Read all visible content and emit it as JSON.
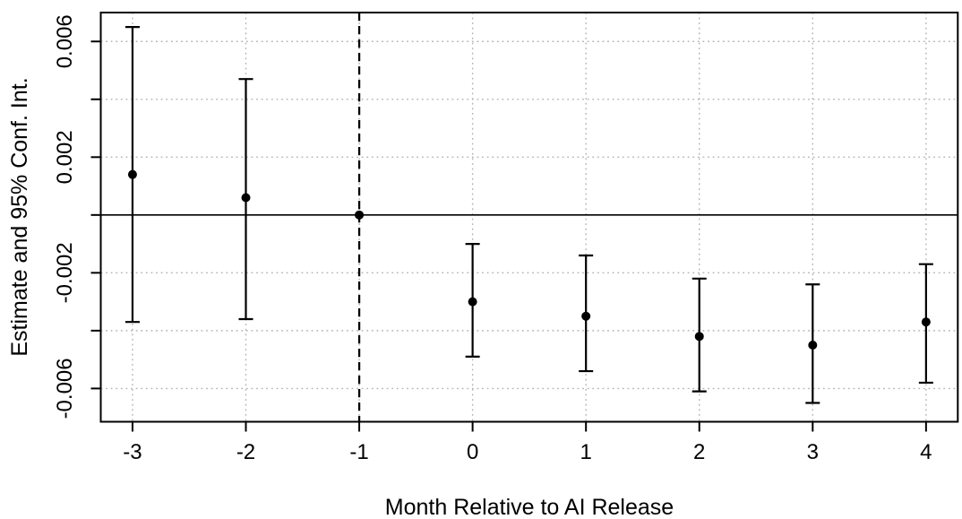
{
  "figure": {
    "kind": "statistical-plot",
    "background": "#ffffff"
  },
  "chart_data": {
    "type": "scatter",
    "subtype": "event-study-point-estimates-with-error-bars",
    "title": "",
    "xlabel": "Month Relative to AI Release",
    "ylabel": "Estimate and 95% Conf. Int.",
    "x": [
      -3,
      -2,
      -1,
      0,
      1,
      2,
      3,
      4
    ],
    "series": [
      {
        "name": "Estimate",
        "values": [
          0.0014,
          0.0006,
          0,
          -0.003,
          -0.0035,
          -0.0042,
          -0.0045,
          -0.0037
        ],
        "ci_low": [
          -0.0037,
          -0.0036,
          null,
          -0.0049,
          -0.0054,
          -0.0061,
          -0.0065,
          -0.0058
        ],
        "ci_high": [
          0.0065,
          0.0047,
          null,
          -0.001,
          -0.0014,
          -0.0022,
          -0.0024,
          -0.0017
        ]
      }
    ],
    "reference_period_x": -1,
    "vline": {
      "x": -1,
      "style": "dashed",
      "color": "#000000"
    },
    "hline": {
      "y": 0,
      "style": "solid",
      "color": "#000000"
    },
    "x_ticks": [
      -3,
      -2,
      -1,
      0,
      1,
      2,
      3,
      4
    ],
    "x_tick_labels": [
      "-3",
      "-2",
      "-1",
      "0",
      "1",
      "2",
      "3",
      "4"
    ],
    "y_ticks": [
      -0.006,
      -0.004,
      -0.002,
      0,
      0.002,
      0.004,
      0.006
    ],
    "y_tick_labels": [
      "-0.006",
      "",
      "-0.002",
      "",
      "0.002",
      "",
      "0.006"
    ],
    "xlim": [
      -3.28,
      4.28
    ],
    "ylim": [
      -0.00715,
      0.007
    ],
    "grid": "dotted",
    "legend": "none",
    "colors": {
      "points": "#000000",
      "axis": "#000000",
      "grid": "#b4b4b4",
      "background": "#ffffff"
    }
  }
}
